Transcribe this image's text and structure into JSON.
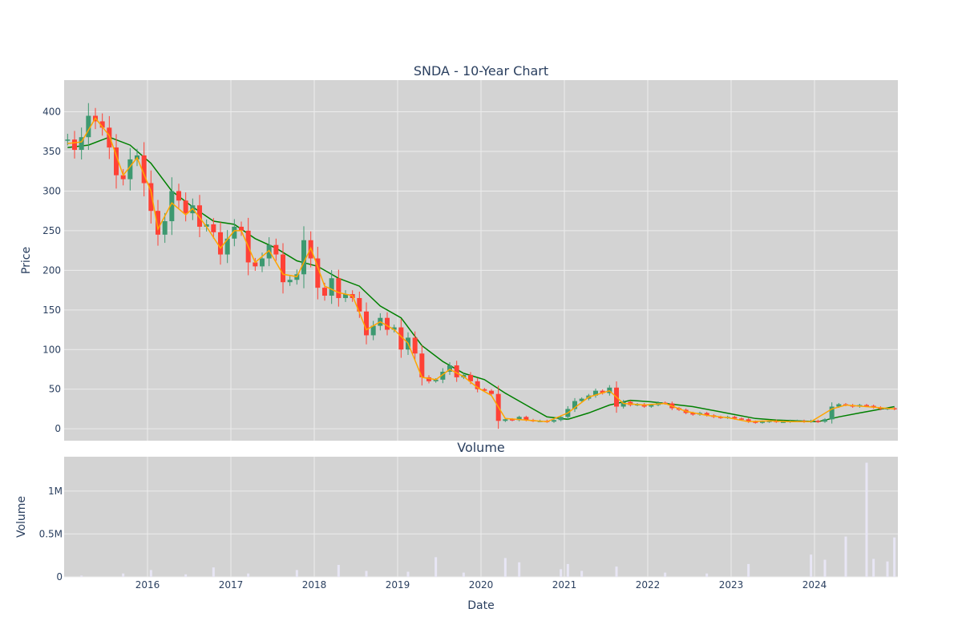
{
  "chart_data": [
    {
      "type": "candlestick",
      "title": "SNDA - 10-Year Chart",
      "xlabel": "",
      "ylabel": "Price",
      "ylim": [
        -15,
        440
      ],
      "xlim": [
        "2015-01-01",
        "2024-12-31"
      ],
      "yticks": [
        0,
        50,
        100,
        150,
        200,
        250,
        300,
        350,
        400
      ],
      "grid": true,
      "legend": "none",
      "price_series": [
        {
          "x": "2015-01",
          "y": 365
        },
        {
          "x": "2015-02",
          "y": 352
        },
        {
          "x": "2015-03",
          "y": 368
        },
        {
          "x": "2015-04",
          "y": 395
        },
        {
          "x": "2015-05",
          "y": 388
        },
        {
          "x": "2015-06",
          "y": 380
        },
        {
          "x": "2015-07",
          "y": 355
        },
        {
          "x": "2015-08",
          "y": 320
        },
        {
          "x": "2015-09",
          "y": 315
        },
        {
          "x": "2015-10",
          "y": 340
        },
        {
          "x": "2015-11",
          "y": 345
        },
        {
          "x": "2015-12",
          "y": 310
        },
        {
          "x": "2016-01",
          "y": 275
        },
        {
          "x": "2016-02",
          "y": 245
        },
        {
          "x": "2016-03",
          "y": 262
        },
        {
          "x": "2016-04",
          "y": 300
        },
        {
          "x": "2016-05",
          "y": 288
        },
        {
          "x": "2016-06",
          "y": 272
        },
        {
          "x": "2016-07",
          "y": 282
        },
        {
          "x": "2016-08",
          "y": 255
        },
        {
          "x": "2016-09",
          "y": 258
        },
        {
          "x": "2016-10",
          "y": 248
        },
        {
          "x": "2016-11",
          "y": 220
        },
        {
          "x": "2016-12",
          "y": 240
        },
        {
          "x": "2017-01",
          "y": 255
        },
        {
          "x": "2017-02",
          "y": 250
        },
        {
          "x": "2017-03",
          "y": 210
        },
        {
          "x": "2017-04",
          "y": 205
        },
        {
          "x": "2017-05",
          "y": 215
        },
        {
          "x": "2017-06",
          "y": 232
        },
        {
          "x": "2017-07",
          "y": 220
        },
        {
          "x": "2017-08",
          "y": 185
        },
        {
          "x": "2017-09",
          "y": 188
        },
        {
          "x": "2017-10",
          "y": 195
        },
        {
          "x": "2017-11",
          "y": 238
        },
        {
          "x": "2017-12",
          "y": 215
        },
        {
          "x": "2018-01",
          "y": 178
        },
        {
          "x": "2018-02",
          "y": 168
        },
        {
          "x": "2018-03",
          "y": 190
        },
        {
          "x": "2018-04",
          "y": 165
        },
        {
          "x": "2018-05",
          "y": 170
        },
        {
          "x": "2018-06",
          "y": 165
        },
        {
          "x": "2018-07",
          "y": 148
        },
        {
          "x": "2018-08",
          "y": 118
        },
        {
          "x": "2018-09",
          "y": 130
        },
        {
          "x": "2018-10",
          "y": 140
        },
        {
          "x": "2018-11",
          "y": 125
        },
        {
          "x": "2018-12",
          "y": 128
        },
        {
          "x": "2019-01",
          "y": 100
        },
        {
          "x": "2019-02",
          "y": 115
        },
        {
          "x": "2019-03",
          "y": 95
        },
        {
          "x": "2019-04",
          "y": 65
        },
        {
          "x": "2019-05",
          "y": 60
        },
        {
          "x": "2019-06",
          "y": 62
        },
        {
          "x": "2019-07",
          "y": 72
        },
        {
          "x": "2019-08",
          "y": 80
        },
        {
          "x": "2019-09",
          "y": 65
        },
        {
          "x": "2019-10",
          "y": 68
        },
        {
          "x": "2019-11",
          "y": 60
        },
        {
          "x": "2019-12",
          "y": 50
        },
        {
          "x": "2020-01",
          "y": 48
        },
        {
          "x": "2020-02",
          "y": 44
        },
        {
          "x": "2020-03",
          "y": 10
        },
        {
          "x": "2020-04",
          "y": 12
        },
        {
          "x": "2020-05",
          "y": 11
        },
        {
          "x": "2020-06",
          "y": 15
        },
        {
          "x": "2020-07",
          "y": 11
        },
        {
          "x": "2020-08",
          "y": 10
        },
        {
          "x": "2020-09",
          "y": 10
        },
        {
          "x": "2020-10",
          "y": 9
        },
        {
          "x": "2020-11",
          "y": 11
        },
        {
          "x": "2020-12",
          "y": 15
        },
        {
          "x": "2021-01",
          "y": 25
        },
        {
          "x": "2021-02",
          "y": 35
        },
        {
          "x": "2021-03",
          "y": 38
        },
        {
          "x": "2021-04",
          "y": 42
        },
        {
          "x": "2021-05",
          "y": 48
        },
        {
          "x": "2021-06",
          "y": 45
        },
        {
          "x": "2021-07",
          "y": 52
        },
        {
          "x": "2021-08",
          "y": 28
        },
        {
          "x": "2021-09",
          "y": 34
        },
        {
          "x": "2021-10",
          "y": 30
        },
        {
          "x": "2021-11",
          "y": 31
        },
        {
          "x": "2021-12",
          "y": 28
        },
        {
          "x": "2022-01",
          "y": 30
        },
        {
          "x": "2022-02",
          "y": 33
        },
        {
          "x": "2022-03",
          "y": 32
        },
        {
          "x": "2022-04",
          "y": 26
        },
        {
          "x": "2022-05",
          "y": 24
        },
        {
          "x": "2022-06",
          "y": 20
        },
        {
          "x": "2022-07",
          "y": 18
        },
        {
          "x": "2022-08",
          "y": 20
        },
        {
          "x": "2022-09",
          "y": 17
        },
        {
          "x": "2022-10",
          "y": 15
        },
        {
          "x": "2022-11",
          "y": 14
        },
        {
          "x": "2022-12",
          "y": 15
        },
        {
          "x": "2023-01",
          "y": 13
        },
        {
          "x": "2023-02",
          "y": 12
        },
        {
          "x": "2023-03",
          "y": 9
        },
        {
          "x": "2023-04",
          "y": 8
        },
        {
          "x": "2023-05",
          "y": 9
        },
        {
          "x": "2023-06",
          "y": 10
        },
        {
          "x": "2023-07",
          "y": 9
        },
        {
          "x": "2023-08",
          "y": 9
        },
        {
          "x": "2023-09",
          "y": 10
        },
        {
          "x": "2023-10",
          "y": 10
        },
        {
          "x": "2023-11",
          "y": 9
        },
        {
          "x": "2023-12",
          "y": 10
        },
        {
          "x": "2024-01",
          "y": 9
        },
        {
          "x": "2024-02",
          "y": 12
        },
        {
          "x": "2024-03",
          "y": 28
        },
        {
          "x": "2024-04",
          "y": 31
        },
        {
          "x": "2024-05",
          "y": 30
        },
        {
          "x": "2024-06",
          "y": 28
        },
        {
          "x": "2024-07",
          "y": 30
        },
        {
          "x": "2024-08",
          "y": 29
        },
        {
          "x": "2024-09",
          "y": 27
        },
        {
          "x": "2024-10",
          "y": 25
        },
        {
          "x": "2024-11",
          "y": 26
        },
        {
          "x": "2024-12",
          "y": 25
        }
      ],
      "ma_short": [
        {
          "x": "2015-01",
          "y": 360
        },
        {
          "x": "2015-03",
          "y": 362
        },
        {
          "x": "2015-05",
          "y": 392
        },
        {
          "x": "2015-07",
          "y": 370
        },
        {
          "x": "2015-09",
          "y": 320
        },
        {
          "x": "2015-11",
          "y": 342
        },
        {
          "x": "2016-01",
          "y": 300
        },
        {
          "x": "2016-02",
          "y": 252
        },
        {
          "x": "2016-04",
          "y": 285
        },
        {
          "x": "2016-06",
          "y": 270
        },
        {
          "x": "2016-07",
          "y": 278
        },
        {
          "x": "2016-09",
          "y": 255
        },
        {
          "x": "2016-11",
          "y": 228
        },
        {
          "x": "2017-01",
          "y": 250
        },
        {
          "x": "2017-02",
          "y": 250
        },
        {
          "x": "2017-04",
          "y": 210
        },
        {
          "x": "2017-06",
          "y": 225
        },
        {
          "x": "2017-08",
          "y": 195
        },
        {
          "x": "2017-10",
          "y": 192
        },
        {
          "x": "2017-12",
          "y": 228
        },
        {
          "x": "2018-02",
          "y": 180
        },
        {
          "x": "2018-04",
          "y": 172
        },
        {
          "x": "2018-06",
          "y": 168
        },
        {
          "x": "2018-08",
          "y": 125
        },
        {
          "x": "2018-10",
          "y": 135
        },
        {
          "x": "2018-12",
          "y": 125
        },
        {
          "x": "2019-02",
          "y": 108
        },
        {
          "x": "2019-04",
          "y": 65
        },
        {
          "x": "2019-06",
          "y": 62
        },
        {
          "x": "2019-08",
          "y": 75
        },
        {
          "x": "2019-10",
          "y": 66
        },
        {
          "x": "2019-12",
          "y": 52
        },
        {
          "x": "2020-02",
          "y": 42
        },
        {
          "x": "2020-04",
          "y": 13
        },
        {
          "x": "2020-07",
          "y": 11
        },
        {
          "x": "2020-10",
          "y": 9
        },
        {
          "x": "2021-01",
          "y": 20
        },
        {
          "x": "2021-04",
          "y": 40
        },
        {
          "x": "2021-07",
          "y": 48
        },
        {
          "x": "2021-09",
          "y": 32
        },
        {
          "x": "2021-12",
          "y": 30
        },
        {
          "x": "2022-03",
          "y": 32
        },
        {
          "x": "2022-06",
          "y": 22
        },
        {
          "x": "2022-09",
          "y": 17
        },
        {
          "x": "2022-12",
          "y": 14
        },
        {
          "x": "2023-03",
          "y": 9
        },
        {
          "x": "2023-06",
          "y": 10
        },
        {
          "x": "2023-09",
          "y": 9
        },
        {
          "x": "2023-12",
          "y": 9
        },
        {
          "x": "2024-03",
          "y": 25
        },
        {
          "x": "2024-05",
          "y": 30
        },
        {
          "x": "2024-08",
          "y": 28
        },
        {
          "x": "2024-12",
          "y": 25
        }
      ],
      "ma_long": [
        {
          "x": "2015-01",
          "y": 355
        },
        {
          "x": "2015-04",
          "y": 358
        },
        {
          "x": "2015-07",
          "y": 368
        },
        {
          "x": "2015-10",
          "y": 358
        },
        {
          "x": "2016-01",
          "y": 335
        },
        {
          "x": "2016-04",
          "y": 300
        },
        {
          "x": "2016-07",
          "y": 280
        },
        {
          "x": "2016-10",
          "y": 262
        },
        {
          "x": "2017-01",
          "y": 258
        },
        {
          "x": "2017-04",
          "y": 240
        },
        {
          "x": "2017-07",
          "y": 228
        },
        {
          "x": "2017-10",
          "y": 212
        },
        {
          "x": "2018-01",
          "y": 205
        },
        {
          "x": "2018-04",
          "y": 190
        },
        {
          "x": "2018-07",
          "y": 180
        },
        {
          "x": "2018-10",
          "y": 155
        },
        {
          "x": "2019-01",
          "y": 140
        },
        {
          "x": "2019-04",
          "y": 105
        },
        {
          "x": "2019-07",
          "y": 85
        },
        {
          "x": "2019-10",
          "y": 70
        },
        {
          "x": "2020-01",
          "y": 62
        },
        {
          "x": "2020-04",
          "y": 45
        },
        {
          "x": "2020-07",
          "y": 30
        },
        {
          "x": "2020-10",
          "y": 15
        },
        {
          "x": "2021-01",
          "y": 12
        },
        {
          "x": "2021-04",
          "y": 20
        },
        {
          "x": "2021-07",
          "y": 30
        },
        {
          "x": "2021-10",
          "y": 36
        },
        {
          "x": "2022-01",
          "y": 34
        },
        {
          "x": "2022-04",
          "y": 31
        },
        {
          "x": "2022-07",
          "y": 28
        },
        {
          "x": "2022-10",
          "y": 23
        },
        {
          "x": "2023-01",
          "y": 18
        },
        {
          "x": "2023-04",
          "y": 13
        },
        {
          "x": "2023-07",
          "y": 11
        },
        {
          "x": "2023-10",
          "y": 10
        },
        {
          "x": "2024-01",
          "y": 9
        },
        {
          "x": "2024-04",
          "y": 15
        },
        {
          "x": "2024-07",
          "y": 20
        },
        {
          "x": "2024-12",
          "y": 28
        }
      ],
      "colors": {
        "increasing": "#3d9970",
        "decreasing": "#ff4136",
        "ma_short": "#ffa500",
        "ma_long": "#008000",
        "plot_bg": "#d3d3d3",
        "grid": "#ececec",
        "text": "#2a3f5f"
      }
    },
    {
      "type": "bar",
      "title": "Volume",
      "xlabel": "Date",
      "ylabel": "Volume",
      "ylim": [
        0,
        1400000
      ],
      "yticks": [
        {
          "v": 0,
          "label": "0"
        },
        {
          "v": 500000,
          "label": "0.5M"
        },
        {
          "v": 1000000,
          "label": "1M"
        }
      ],
      "xticks": [
        "2016",
        "2017",
        "2018",
        "2019",
        "2020",
        "2021",
        "2022",
        "2023",
        "2024"
      ],
      "series": [
        {
          "x": "2015-03",
          "y": 15000
        },
        {
          "x": "2015-09",
          "y": 40000
        },
        {
          "x": "2016-01",
          "y": 80000
        },
        {
          "x": "2016-06",
          "y": 30000
        },
        {
          "x": "2016-10",
          "y": 110000
        },
        {
          "x": "2017-03",
          "y": 40000
        },
        {
          "x": "2017-10",
          "y": 80000
        },
        {
          "x": "2018-04",
          "y": 140000
        },
        {
          "x": "2018-08",
          "y": 70000
        },
        {
          "x": "2019-02",
          "y": 60000
        },
        {
          "x": "2019-06",
          "y": 230000
        },
        {
          "x": "2019-10",
          "y": 50000
        },
        {
          "x": "2020-04",
          "y": 220000
        },
        {
          "x": "2020-06",
          "y": 170000
        },
        {
          "x": "2020-12",
          "y": 90000
        },
        {
          "x": "2021-01",
          "y": 150000
        },
        {
          "x": "2021-03",
          "y": 70000
        },
        {
          "x": "2021-08",
          "y": 120000
        },
        {
          "x": "2022-03",
          "y": 50000
        },
        {
          "x": "2022-09",
          "y": 40000
        },
        {
          "x": "2023-03",
          "y": 150000
        },
        {
          "x": "2023-12",
          "y": 260000
        },
        {
          "x": "2024-02",
          "y": 200000
        },
        {
          "x": "2024-05",
          "y": 470000
        },
        {
          "x": "2024-08",
          "y": 1330000
        },
        {
          "x": "2024-09",
          "y": 210000
        },
        {
          "x": "2024-11",
          "y": 180000
        },
        {
          "x": "2024-12",
          "y": 460000
        }
      ],
      "colors": {
        "bar": "#e8e6f5"
      }
    }
  ]
}
